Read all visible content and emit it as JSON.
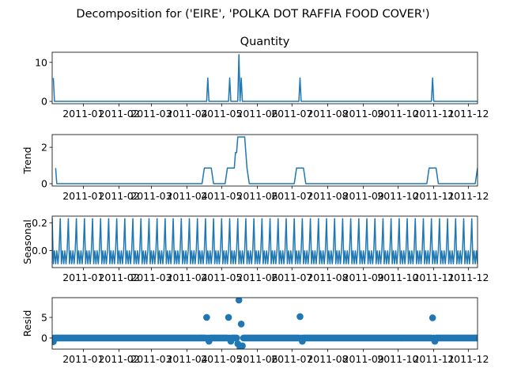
{
  "suptitle": "Decomposition for ('EIRE', 'POLKA DOT RAFFIA FOOD COVER')",
  "line_color": "#1f77b4",
  "x_tick_labels": [
    "2011-01",
    "2011-02",
    "2011-03",
    "2011-04",
    "2011-05",
    "2011-06",
    "2011-07",
    "2011-08",
    "2011-09",
    "2011-10",
    "2011-11",
    "2011-12"
  ],
  "chart_data": [
    {
      "type": "line",
      "title": "Quantity",
      "ylabel": "",
      "x_domain": [
        "2010-12-05",
        "2011-12-09"
      ],
      "ylim": [
        -0.6,
        12.6
      ],
      "y_ticks": [
        0,
        10
      ],
      "series": [
        {
          "values": [
            [
              1,
              6
            ],
            [
              2,
              0
            ],
            [
              134,
              0
            ],
            [
              135,
              6
            ],
            [
              136,
              0
            ],
            [
              153,
              0
            ],
            [
              154,
              6
            ],
            [
              155,
              0
            ],
            [
              161,
              0
            ],
            [
              162,
              12
            ],
            [
              163,
              0
            ],
            [
              164,
              6
            ],
            [
              165,
              0
            ],
            [
              214,
              0
            ],
            [
              215,
              6
            ],
            [
              216,
              0
            ],
            [
              329,
              0
            ],
            [
              330,
              6
            ],
            [
              331,
              0
            ],
            [
              370,
              0
            ],
            [
              371,
              6
            ]
          ]
        }
      ]
    },
    {
      "type": "line",
      "title": "",
      "ylabel": "Trend",
      "x_domain": [
        "2010-12-05",
        "2011-12-09"
      ],
      "ylim": [
        -0.13,
        2.7
      ],
      "y_ticks": [
        0,
        2
      ],
      "series": [
        {
          "values": [
            [
              3,
              0.86
            ],
            [
              4,
              0
            ],
            [
              130,
              0
            ],
            [
              132,
              0.86
            ],
            [
              138,
              0.86
            ],
            [
              140,
              0
            ],
            [
              150,
              0
            ],
            [
              152,
              0.86
            ],
            [
              158,
              0.86
            ],
            [
              159,
              1.71
            ],
            [
              160,
              1.71
            ],
            [
              161,
              2.57
            ],
            [
              167,
              2.57
            ],
            [
              168,
              1.71
            ],
            [
              169,
              0.86
            ],
            [
              171,
              0
            ],
            [
              210,
              0
            ],
            [
              212,
              0.86
            ],
            [
              218,
              0.86
            ],
            [
              220,
              0
            ],
            [
              325,
              0
            ],
            [
              327,
              0.86
            ],
            [
              333,
              0.86
            ],
            [
              335,
              0
            ],
            [
              367,
              0
            ],
            [
              369,
              0.86
            ]
          ]
        }
      ]
    },
    {
      "type": "line",
      "title": "",
      "ylabel": "Seasonal",
      "x_domain": [
        "2010-12-05",
        "2011-12-09"
      ],
      "ylim": [
        -0.125,
        0.25
      ],
      "y_ticks": [
        0.0,
        0.2
      ],
      "y_tick_labels": [
        "0.0",
        "0.2"
      ],
      "period": 7,
      "series": [
        {
          "pattern": [
            0.235,
            -0.1,
            0.0,
            -0.1,
            0.0,
            -0.1,
            0.0
          ]
        }
      ]
    },
    {
      "type": "scatter",
      "title": "",
      "ylabel": "Resid",
      "x_domain": [
        "2010-12-05",
        "2011-12-09"
      ],
      "ylim": [
        -2.7,
        9.8
      ],
      "y_ticks": [
        0,
        5
      ],
      "outliers": [
        [
          1,
          -0.9
        ],
        [
          134,
          5.0
        ],
        [
          136,
          -0.8
        ],
        [
          153,
          5.0
        ],
        [
          155,
          -0.8
        ],
        [
          161,
          -1.4
        ],
        [
          162,
          9.2
        ],
        [
          163,
          -2.4
        ],
        [
          164,
          3.4
        ],
        [
          165,
          -1.9
        ],
        [
          215,
          5.2
        ],
        [
          217,
          -0.8
        ],
        [
          330,
          4.9
        ],
        [
          332,
          -0.8
        ],
        [
          371,
          -0.8
        ]
      ]
    }
  ]
}
